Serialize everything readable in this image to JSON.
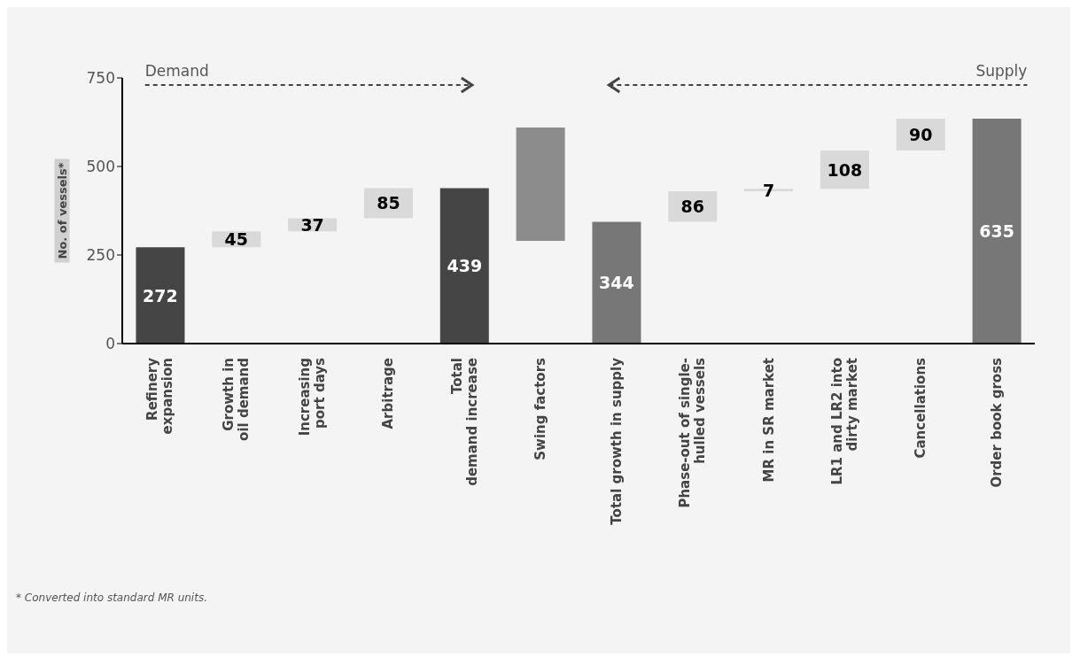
{
  "chart_data": {
    "type": "bar",
    "ylabel": "No. of vessels*",
    "categories": [
      "Refinery\nexpansion",
      "Growth in\noil demand",
      "Increasing\nport days",
      "Arbitrage",
      "Total\ndemand increase",
      "Swing factors",
      "Total growth in supply",
      "Phase-out of single-\nhulled vessels",
      "MR in SR market",
      "LR1 and LR2 into\ndirty market",
      "Cancellations",
      "Order book gross"
    ],
    "values": [
      272,
      45,
      37,
      85,
      439,
      320,
      344,
      86,
      7,
      108,
      90,
      635
    ],
    "base": [
      0,
      272,
      317,
      354,
      0,
      290,
      0,
      344,
      430,
      437,
      545,
      0
    ],
    "colors": [
      "#454545",
      "#d9d9d9",
      "#d9d9d9",
      "#d9d9d9",
      "#454545",
      "#8c8c8c",
      "#777777",
      "#d9d9d9",
      "#d9d9d9",
      "#d9d9d9",
      "#d9d9d9",
      "#777777"
    ],
    "value_labels": [
      "272",
      "45",
      "37",
      "85",
      "439",
      null,
      "344",
      "86",
      "7",
      "108",
      "90",
      "635"
    ],
    "ylim": [
      0,
      750
    ],
    "yticks": [
      0,
      250,
      500,
      750
    ],
    "grid": false,
    "annotations": [
      "Demand",
      "Supply",
      "* Converted into standard MR units."
    ]
  }
}
